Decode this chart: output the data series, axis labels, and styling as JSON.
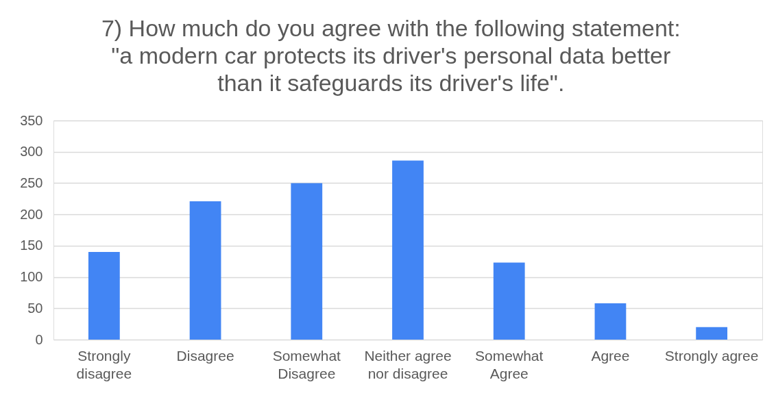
{
  "chart_data": {
    "type": "bar",
    "title": "7) How much do you agree with the following statement: \"a modern car protects its driver's personal data better than it safeguards its driver's life\".",
    "categories": [
      "Strongly disagree",
      "Disagree",
      "Somewhat Disagree",
      "Neither agree nor disagree",
      "Somewhat Agree",
      "Agree",
      "Strongly agree"
    ],
    "values": [
      140,
      221,
      250,
      286,
      123,
      58,
      20
    ],
    "color": "#4285f4",
    "ylim": [
      0,
      350
    ],
    "yticks": [
      0,
      50,
      100,
      150,
      200,
      250,
      300,
      350
    ],
    "grid": "y"
  }
}
